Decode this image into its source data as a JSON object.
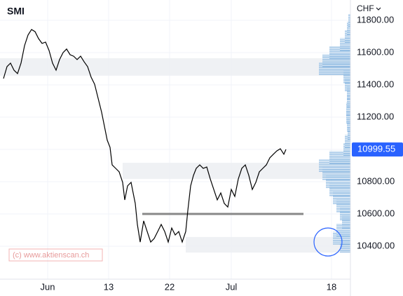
{
  "chart_data": {
    "type": "line",
    "title": "SMI",
    "currency": "CHF",
    "watermark": "(c) www.aktienscan.ch",
    "color": "#000000",
    "x": [
      0.5,
      1,
      1.5,
      2,
      2.5,
      3,
      3.5,
      4,
      4.5,
      5,
      5.5,
      6,
      6.5,
      7,
      7.5,
      8,
      8.5,
      9,
      9.5,
      10,
      10.5,
      11,
      11.5,
      12,
      12.5,
      13,
      13.5,
      14,
      14.5,
      15,
      15.3,
      15.7,
      16,
      16.5,
      17,
      17.5,
      17.8,
      18.2,
      18.7,
      19,
      19.3,
      19.6,
      20,
      20.5,
      21,
      21.5,
      22,
      22.5,
      23,
      23.5,
      24,
      24.5,
      25,
      25.5,
      26,
      26.5,
      26.8,
      27.2,
      27.6,
      28,
      28.5,
      29,
      29.5,
      30,
      30.5,
      31,
      31.5,
      32,
      32.5,
      33,
      33.5,
      34,
      34.5,
      35,
      35.5,
      36,
      36.5,
      37,
      37.5,
      38,
      38.5,
      39,
      39.5,
      40,
      40.5,
      40.8
    ],
    "values": [
      11439,
      11513,
      11535,
      11491,
      11470,
      11535,
      11643,
      11709,
      11743,
      11730,
      11687,
      11657,
      11665,
      11613,
      11535,
      11491,
      11557,
      11600,
      11622,
      11587,
      11578,
      11557,
      11578,
      11543,
      11513,
      11448,
      11404,
      11317,
      11230,
      11122,
      11057,
      11013,
      10904,
      10883,
      10861,
      10796,
      10687,
      10774,
      10796,
      10730,
      10665,
      10535,
      10426,
      10557,
      10491,
      10426,
      10448,
      10491,
      10535,
      10491,
      10426,
      10513,
      10470,
      10491,
      10426,
      10491,
      10622,
      10774,
      10839,
      10883,
      10904,
      10883,
      10891,
      10817,
      10752,
      10687,
      10730,
      10665,
      10643,
      10752,
      10709,
      10817,
      10883,
      10904,
      10839,
      10752,
      10796,
      10861,
      10883,
      10904,
      10948,
      10970,
      10991,
      11004,
      10970,
      11000
    ],
    "xlim": [
      0,
      50
    ],
    "xticks": [
      {
        "value": 6.8,
        "label": "Jun"
      },
      {
        "value": 15.5,
        "label": "13"
      },
      {
        "value": 24.2,
        "label": "22"
      },
      {
        "value": 33,
        "label": "Jul"
      },
      {
        "value": 47.3,
        "label": "18"
      }
    ],
    "ylim": [
      10196,
      11926
    ],
    "yticks": [
      {
        "value": 10400,
        "label": "10400.00"
      },
      {
        "value": 10600,
        "label": "10600.00"
      },
      {
        "value": 10800,
        "label": "10800.00"
      },
      {
        "value": 11000,
        "label": "11000.00"
      },
      {
        "value": 11200,
        "label": "11200.00"
      },
      {
        "value": 11400,
        "label": "11400.00"
      },
      {
        "value": 11600,
        "label": "11600.00"
      },
      {
        "value": 11800,
        "label": "11800.00"
      }
    ],
    "grid": true,
    "last_price": 10999.55,
    "last_price_color": "#2962ff",
    "zones": [
      {
        "x_start": 0,
        "range": [
          11457,
          11565
        ]
      },
      {
        "x_start": 17.5,
        "range": [
          10817,
          10917
        ]
      },
      {
        "x_start": 26.5,
        "range": [
          10361,
          10457
        ]
      }
    ],
    "support_line": {
      "value": 10600,
      "x": [
        20.3,
        43.3
      ]
    },
    "volume_profile": {
      "color": "#5b9bd5",
      "levels": [
        10400,
        10450,
        10500,
        10550,
        10600,
        10650,
        10700,
        10750,
        10800,
        10850,
        10900,
        10950,
        11000,
        11050,
        11100,
        11150,
        11200,
        11250,
        11300,
        11350,
        11400,
        11450,
        11500,
        11550,
        11600,
        11650,
        11700,
        11750,
        11800
      ],
      "values": [
        15,
        25,
        20,
        12,
        15,
        20,
        25,
        30,
        35,
        40,
        45,
        30,
        10,
        8,
        4,
        5,
        6,
        6,
        5,
        5,
        8,
        10,
        45,
        40,
        30,
        15,
        8,
        5,
        3
      ]
    }
  }
}
